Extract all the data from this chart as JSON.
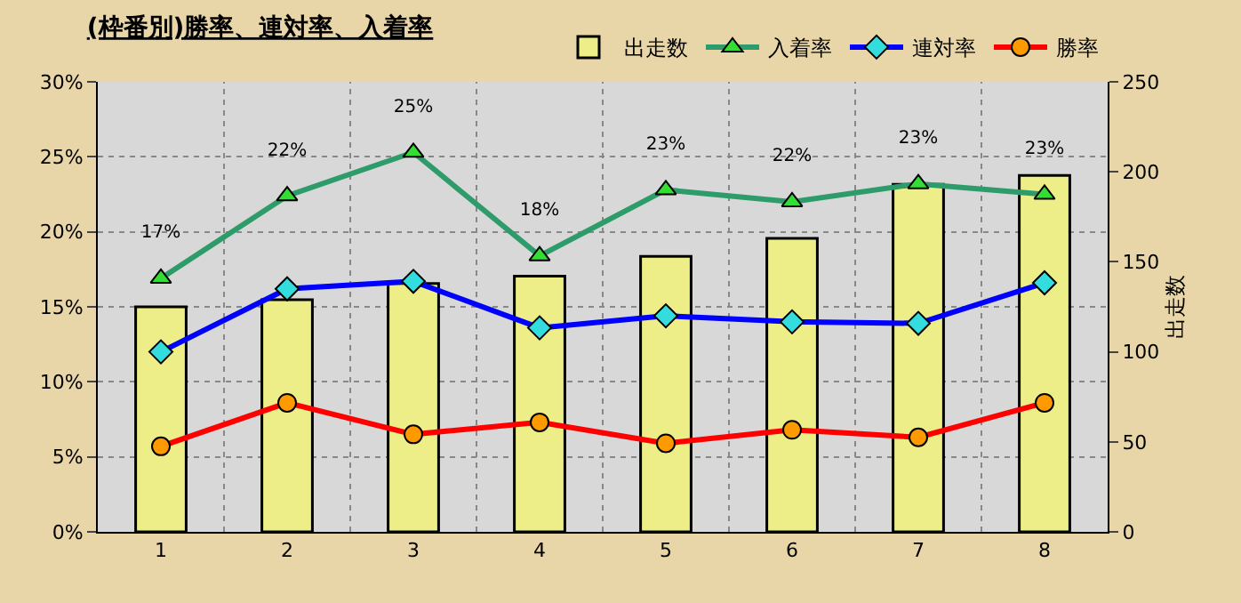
{
  "chart_data": {
    "type": "line",
    "title": "(枠番別)勝率、連対率、入着率",
    "y2label": "出走数",
    "categories": [
      "1",
      "2",
      "3",
      "4",
      "5",
      "6",
      "7",
      "8"
    ],
    "series": [
      {
        "name": "出走数",
        "type": "bar",
        "axis": "y2",
        "color": "#eeee88",
        "values": [
          125,
          129,
          138,
          142,
          153,
          163,
          193,
          198
        ]
      },
      {
        "name": "入着率",
        "marker": "triangle",
        "color": "#2e9c6a",
        "values": [
          16.9,
          22.4,
          25.3,
          18.4,
          22.8,
          22.0,
          23.2,
          22.5
        ],
        "value_labels": [
          "17%",
          "22%",
          "25%",
          "18%",
          "23%",
          "22%",
          "23%",
          "23%"
        ]
      },
      {
        "name": "連対率",
        "marker": "diamond",
        "color": "#0000ff",
        "values": [
          12.0,
          16.2,
          16.7,
          13.6,
          14.4,
          14.0,
          13.9,
          16.6
        ]
      },
      {
        "name": "勝率",
        "marker": "circle",
        "color": "#ff0000",
        "values": [
          5.7,
          8.6,
          6.5,
          7.3,
          5.9,
          6.8,
          6.3,
          8.6
        ]
      }
    ],
    "ylim": [
      0,
      30
    ],
    "yticks": [
      {
        "value": 0,
        "label": "0%"
      },
      {
        "value": 5,
        "label": "5%"
      },
      {
        "value": 10,
        "label": "10%"
      },
      {
        "value": 15,
        "label": "15%"
      },
      {
        "value": 20,
        "label": "20%"
      },
      {
        "value": 25,
        "label": "25%"
      },
      {
        "value": 30,
        "label": "30%"
      }
    ],
    "y2lim": [
      0,
      250
    ],
    "y2ticks": [
      0,
      50,
      100,
      150,
      200,
      250
    ],
    "grid": true,
    "legend": "top right"
  }
}
